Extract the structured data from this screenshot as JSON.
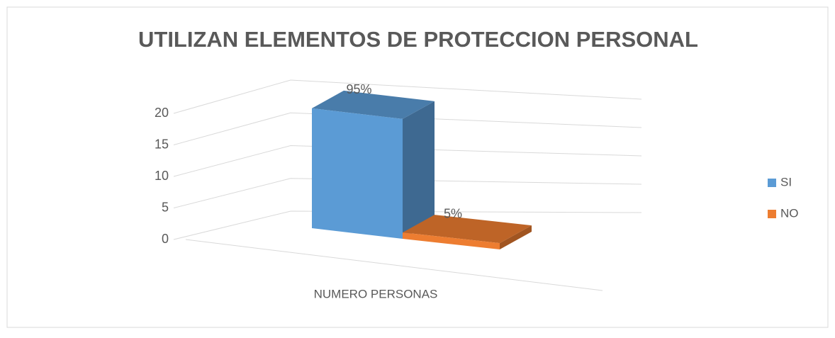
{
  "chart_data": {
    "type": "bar3d",
    "title": "UTILIZAN ELEMENTOS DE PROTECCION PERSONAL",
    "categories": [
      "NUMERO PERSONAS"
    ],
    "series": [
      {
        "name": "SI",
        "color": "#5b9bd5",
        "values": [
          19
        ],
        "value_labels": [
          "95%"
        ]
      },
      {
        "name": "NO",
        "color": "#ed7d31",
        "values": [
          1
        ],
        "value_labels": [
          "5%"
        ]
      }
    ],
    "ylim": [
      0,
      20
    ],
    "yticks": [
      0,
      5,
      10,
      15,
      20
    ],
    "grid": true,
    "legend": "right"
  }
}
